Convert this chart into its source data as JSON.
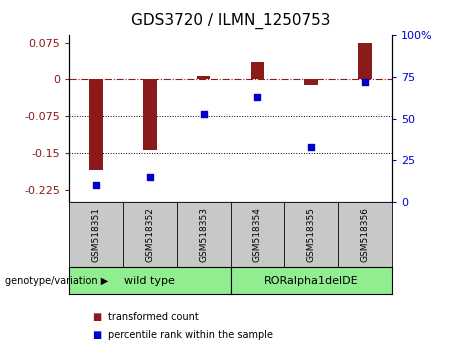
{
  "title": "GDS3720 / ILMN_1250753",
  "samples": [
    "GSM518351",
    "GSM518352",
    "GSM518353",
    "GSM518354",
    "GSM518355",
    "GSM518356"
  ],
  "bar_values": [
    -0.185,
    -0.145,
    0.008,
    0.035,
    -0.012,
    0.075
  ],
  "scatter_values": [
    10,
    15,
    53,
    63,
    33,
    72
  ],
  "group_bg_color": "#90EE90",
  "sample_bg_color": "#C8C8C8",
  "bar_color": "#8B1A1A",
  "scatter_color": "#0000CD",
  "ylim_left": [
    -0.25,
    0.09
  ],
  "ylim_right": [
    0,
    100
  ],
  "yticks_left": [
    0.075,
    0,
    -0.075,
    -0.15,
    -0.225
  ],
  "yticks_right": [
    100,
    75,
    50,
    25,
    0
  ],
  "hline_y": 0,
  "dotted_lines": [
    -0.075,
    -0.15
  ],
  "legend_items": [
    "transformed count",
    "percentile rank within the sample"
  ],
  "genotype_label": "genotype/variation",
  "group1_label": "wild type",
  "group2_label": "RORalpha1delDE",
  "title_fontsize": 11,
  "tick_fontsize": 8,
  "label_fontsize": 8,
  "bar_width": 0.25
}
